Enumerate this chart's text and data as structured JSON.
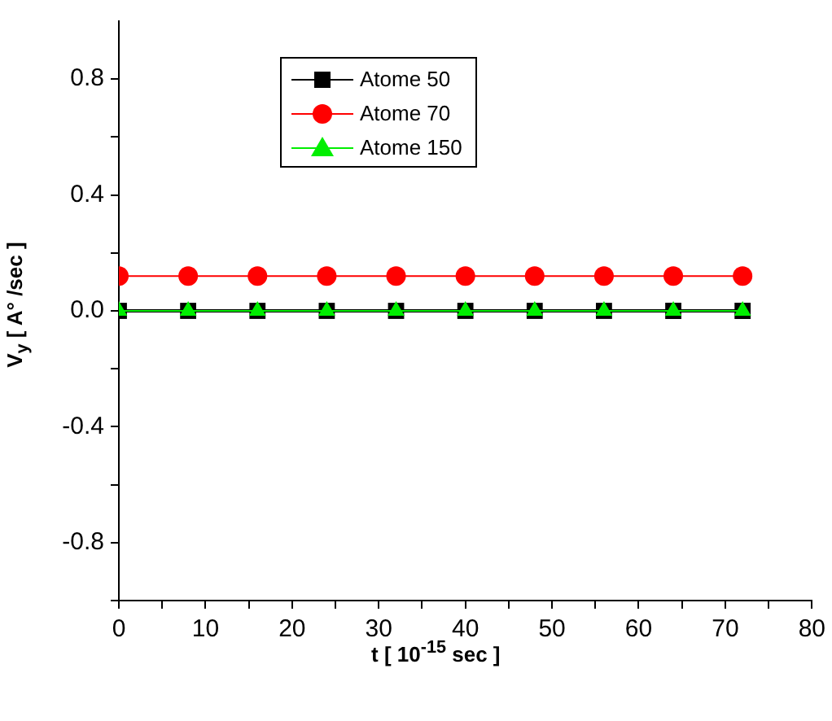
{
  "chart_data": {
    "type": "line",
    "xlabel": "t [ 10$^{-15}$ sec ]",
    "ylabel": "V$_{y}$ [ A° /sec ]",
    "x": [
      0,
      8,
      16,
      24,
      32,
      40,
      48,
      56,
      64,
      72
    ],
    "series": [
      {
        "name": "Atome 50",
        "color": "#000000",
        "marker": "square",
        "values": [
          0,
          0,
          0,
          0,
          0,
          0,
          0,
          0,
          0,
          0
        ]
      },
      {
        "name": "Atome 70",
        "color": "#ff0000",
        "marker": "circle",
        "values": [
          0.12,
          0.12,
          0.12,
          0.12,
          0.12,
          0.12,
          0.12,
          0.12,
          0.12,
          0.12
        ]
      },
      {
        "name": "Atome 150",
        "color": "#00ee00",
        "marker": "triangle",
        "values": [
          0,
          0,
          0,
          0,
          0,
          0,
          0,
          0,
          0,
          0
        ]
      }
    ],
    "xlim": [
      0,
      80
    ],
    "xticks": [
      0,
      {
        "value": 5,
        "label": null
      },
      10,
      {
        "value": 15,
        "label": null
      },
      20,
      {
        "value": 25,
        "label": null
      },
      30,
      {
        "value": 35,
        "label": null
      },
      40,
      {
        "value": 45,
        "label": null
      },
      50,
      {
        "value": 55,
        "label": null
      },
      60,
      {
        "value": 65,
        "label": null
      },
      70,
      {
        "value": 75,
        "label": null
      },
      80
    ],
    "ylim": [
      -1,
      1
    ],
    "yticks": [
      {
        "value": -1,
        "label": null
      },
      -0.8,
      {
        "value": -0.6,
        "label": null
      },
      -0.4,
      {
        "value": -0.2,
        "label": null
      },
      {
        "value": 0,
        "label": "0.0"
      },
      {
        "value": 0.2,
        "label": null
      },
      0.4,
      {
        "value": 0.6,
        "label": null
      },
      0.8
    ],
    "grid": false,
    "legend": "top left",
    "line_style": "solid"
  }
}
